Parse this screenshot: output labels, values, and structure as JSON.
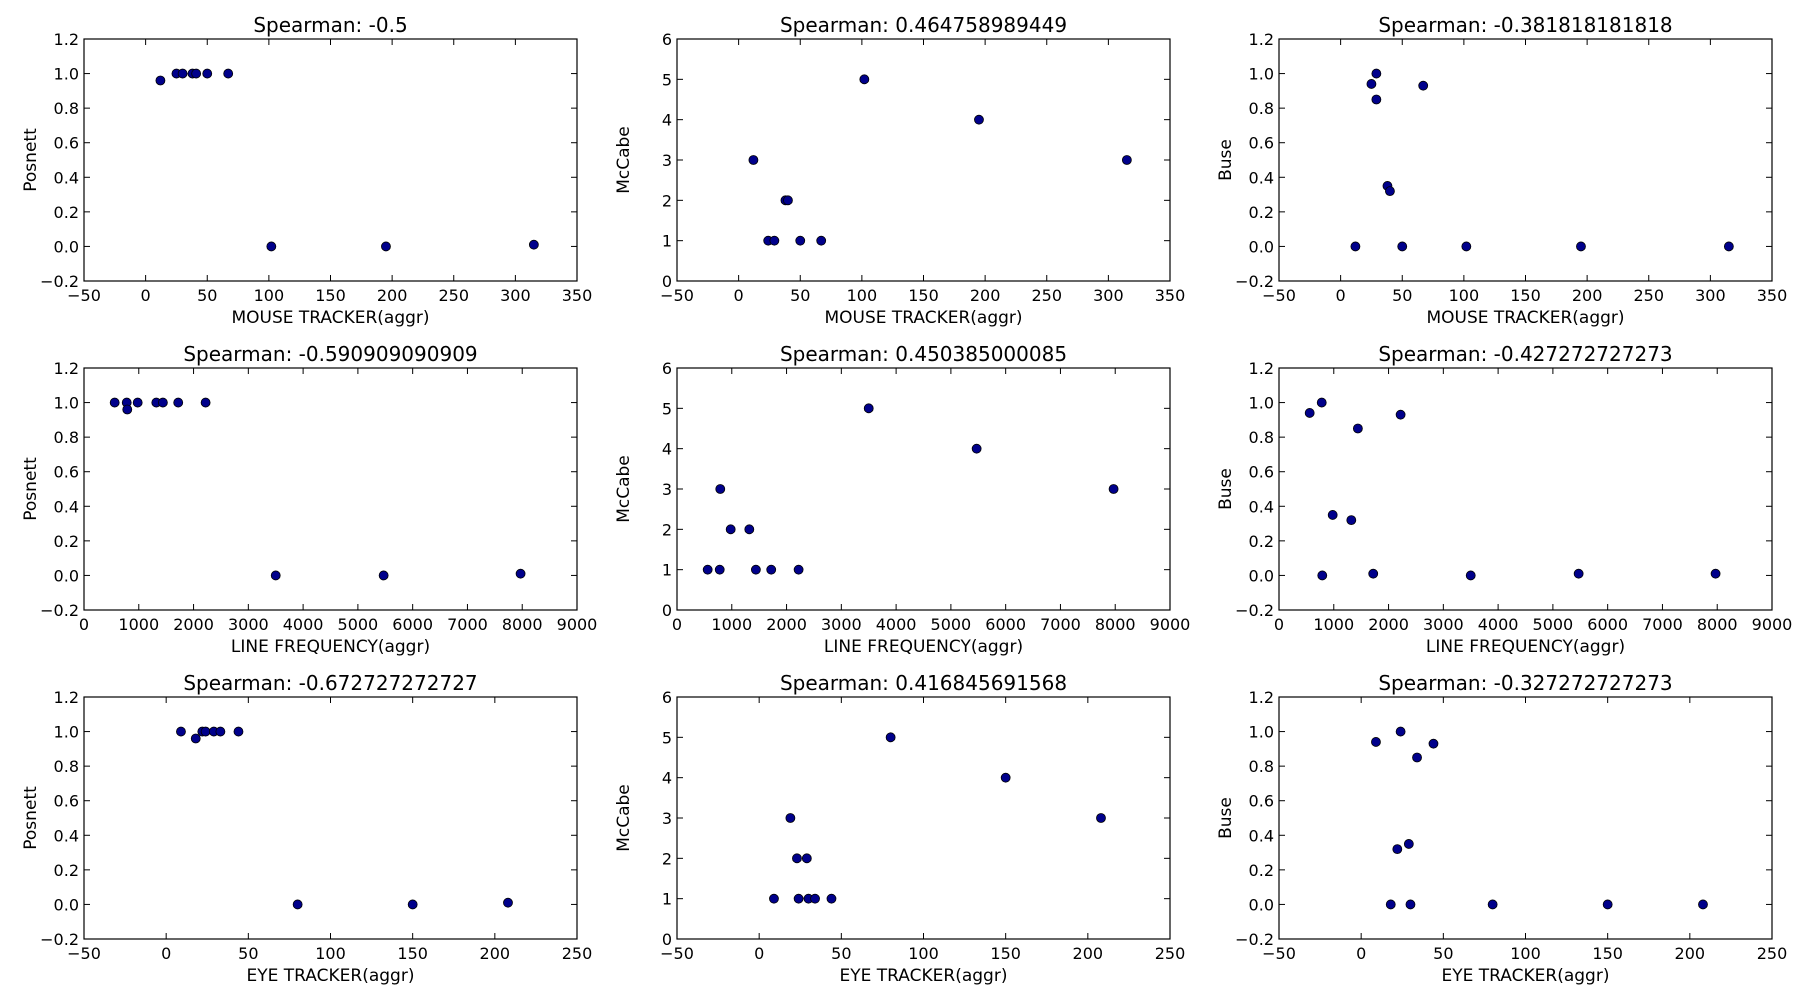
{
  "figure": {
    "background": "#ffffff",
    "marker_color": "#00008b"
  },
  "chart_data": [
    {
      "type": "scatter",
      "title": "Spearman: -0.5",
      "xlabel": "MOUSE TRACKER(aggr)",
      "ylabel": "Posnett",
      "xlim": [
        -50,
        350
      ],
      "ylim": [
        -0.2,
        1.2
      ],
      "xticks": [
        "−50",
        "0",
        "50",
        "100",
        "150",
        "200",
        "250",
        "300",
        "350"
      ],
      "yticks": [
        "−0.2",
        "0.0",
        "0.2",
        "0.4",
        "0.6",
        "0.8",
        "1.0",
        "1.2"
      ],
      "points": [
        [
          12,
          0.96
        ],
        [
          25,
          1.0
        ],
        [
          30,
          1.0
        ],
        [
          38,
          1.0
        ],
        [
          41,
          1.0
        ],
        [
          50,
          1.0
        ],
        [
          67,
          1.0
        ],
        [
          102,
          0.0
        ],
        [
          195,
          0.0
        ],
        [
          315,
          0.01
        ]
      ]
    },
    {
      "type": "scatter",
      "title": "Spearman: 0.464758989449",
      "xlabel": "MOUSE TRACKER(aggr)",
      "ylabel": "McCabe",
      "xlim": [
        -50,
        350
      ],
      "ylim": [
        0,
        6
      ],
      "xticks": [
        "−50",
        "0",
        "50",
        "100",
        "150",
        "200",
        "250",
        "300",
        "350"
      ],
      "yticks": [
        "0",
        "1",
        "2",
        "3",
        "4",
        "5",
        "6"
      ],
      "points": [
        [
          12,
          3
        ],
        [
          24,
          1
        ],
        [
          29,
          1
        ],
        [
          38,
          2
        ],
        [
          40,
          2
        ],
        [
          50,
          1
        ],
        [
          67,
          1
        ],
        [
          102,
          5
        ],
        [
          195,
          4
        ],
        [
          315,
          3
        ]
      ]
    },
    {
      "type": "scatter",
      "title": "Spearman: -0.381818181818",
      "xlabel": "MOUSE TRACKER(aggr)",
      "ylabel": "Buse",
      "xlim": [
        -50,
        350
      ],
      "ylim": [
        -0.2,
        1.2
      ],
      "xticks": [
        "−50",
        "0",
        "50",
        "100",
        "150",
        "200",
        "250",
        "300",
        "350"
      ],
      "yticks": [
        "−0.2",
        "0.0",
        "0.2",
        "0.4",
        "0.6",
        "0.8",
        "1.0",
        "1.2"
      ],
      "points": [
        [
          12,
          0.0
        ],
        [
          25,
          0.94
        ],
        [
          29,
          1.0
        ],
        [
          29,
          0.85
        ],
        [
          38,
          0.35
        ],
        [
          40,
          0.32
        ],
        [
          50,
          0.0
        ],
        [
          67,
          0.93
        ],
        [
          102,
          0.0
        ],
        [
          195,
          0.0
        ],
        [
          315,
          0.0
        ]
      ]
    },
    {
      "type": "scatter",
      "title": "Spearman: -0.590909090909",
      "xlabel": "LINE FREQUENCY(aggr)",
      "ylabel": "Posnett",
      "xlim": [
        0,
        9000
      ],
      "ylim": [
        -0.2,
        1.2
      ],
      "xticks": [
        "0",
        "1000",
        "2000",
        "3000",
        "4000",
        "5000",
        "6000",
        "7000",
        "8000",
        "9000"
      ],
      "yticks": [
        "−0.2",
        "0.0",
        "0.2",
        "0.4",
        "0.6",
        "0.8",
        "1.0",
        "1.2"
      ],
      "points": [
        [
          560,
          1.0
        ],
        [
          780,
          1.0
        ],
        [
          790,
          0.96
        ],
        [
          980,
          1.0
        ],
        [
          1320,
          1.0
        ],
        [
          1440,
          1.0
        ],
        [
          1720,
          1.0
        ],
        [
          2220,
          1.0
        ],
        [
          3500,
          0.0
        ],
        [
          5470,
          0.0
        ],
        [
          7970,
          0.01
        ]
      ]
    },
    {
      "type": "scatter",
      "title": "Spearman: 0.450385000085",
      "xlabel": "LINE FREQUENCY(aggr)",
      "ylabel": "McCabe",
      "xlim": [
        0,
        9000
      ],
      "ylim": [
        0,
        6
      ],
      "xticks": [
        "0",
        "1000",
        "2000",
        "3000",
        "4000",
        "5000",
        "6000",
        "7000",
        "8000",
        "9000"
      ],
      "yticks": [
        "0",
        "1",
        "2",
        "3",
        "4",
        "5",
        "6"
      ],
      "points": [
        [
          560,
          1
        ],
        [
          780,
          1
        ],
        [
          790,
          3
        ],
        [
          980,
          2
        ],
        [
          1320,
          2
        ],
        [
          1440,
          1
        ],
        [
          1720,
          1
        ],
        [
          2220,
          1
        ],
        [
          3500,
          5
        ],
        [
          5470,
          4
        ],
        [
          7970,
          3
        ]
      ]
    },
    {
      "type": "scatter",
      "title": "Spearman: -0.427272727273",
      "xlabel": "LINE FREQUENCY(aggr)",
      "ylabel": "Buse",
      "xlim": [
        0,
        9000
      ],
      "ylim": [
        -0.2,
        1.2
      ],
      "xticks": [
        "0",
        "1000",
        "2000",
        "3000",
        "4000",
        "5000",
        "6000",
        "7000",
        "8000",
        "9000"
      ],
      "yticks": [
        "−0.2",
        "0.0",
        "0.2",
        "0.4",
        "0.6",
        "0.8",
        "1.0",
        "1.2"
      ],
      "points": [
        [
          560,
          0.94
        ],
        [
          780,
          1.0
        ],
        [
          790,
          0.0
        ],
        [
          980,
          0.35
        ],
        [
          1320,
          0.32
        ],
        [
          1440,
          0.85
        ],
        [
          1720,
          0.01
        ],
        [
          2220,
          0.93
        ],
        [
          3500,
          0.0
        ],
        [
          5470,
          0.01
        ],
        [
          7970,
          0.01
        ]
      ]
    },
    {
      "type": "scatter",
      "title": "Spearman: -0.672727272727",
      "xlabel": "EYE TRACKER(aggr)",
      "ylabel": "Posnett",
      "xlim": [
        -50,
        250
      ],
      "ylim": [
        -0.2,
        1.2
      ],
      "xticks": [
        "−50",
        "0",
        "50",
        "100",
        "150",
        "200",
        "250"
      ],
      "yticks": [
        "−0.2",
        "0.0",
        "0.2",
        "0.4",
        "0.6",
        "0.8",
        "1.0",
        "1.2"
      ],
      "points": [
        [
          9,
          1.0
        ],
        [
          18,
          0.96
        ],
        [
          22,
          1.0
        ],
        [
          24,
          1.0
        ],
        [
          29,
          1.0
        ],
        [
          33,
          1.0
        ],
        [
          44,
          1.0
        ],
        [
          80,
          0.0
        ],
        [
          150,
          0.0
        ],
        [
          208,
          0.01
        ]
      ]
    },
    {
      "type": "scatter",
      "title": "Spearman: 0.416845691568",
      "xlabel": "EYE TRACKER(aggr)",
      "ylabel": "McCabe",
      "xlim": [
        -50,
        250
      ],
      "ylim": [
        0,
        6
      ],
      "xticks": [
        "−50",
        "0",
        "50",
        "100",
        "150",
        "200",
        "250"
      ],
      "yticks": [
        "0",
        "1",
        "2",
        "3",
        "4",
        "5",
        "6"
      ],
      "points": [
        [
          9,
          1
        ],
        [
          19,
          3
        ],
        [
          23,
          2
        ],
        [
          24,
          1
        ],
        [
          29,
          2
        ],
        [
          30,
          1
        ],
        [
          34,
          1
        ],
        [
          44,
          1
        ],
        [
          80,
          5
        ],
        [
          150,
          4
        ],
        [
          208,
          3
        ]
      ]
    },
    {
      "type": "scatter",
      "title": "Spearman: -0.327272727273",
      "xlabel": "EYE TRACKER(aggr)",
      "ylabel": "Buse",
      "xlim": [
        -50,
        250
      ],
      "ylim": [
        -0.2,
        1.2
      ],
      "xticks": [
        "−50",
        "0",
        "50",
        "100",
        "150",
        "200",
        "250"
      ],
      "yticks": [
        "−0.2",
        "0.0",
        "0.2",
        "0.4",
        "0.6",
        "0.8",
        "1.0",
        "1.2"
      ],
      "points": [
        [
          9,
          0.94
        ],
        [
          18,
          0.0
        ],
        [
          22,
          0.32
        ],
        [
          24,
          1.0
        ],
        [
          29,
          0.35
        ],
        [
          30,
          0.0
        ],
        [
          34,
          0.85
        ],
        [
          44,
          0.93
        ],
        [
          80,
          0.0
        ],
        [
          150,
          0.0
        ],
        [
          208,
          0.0
        ]
      ]
    }
  ]
}
